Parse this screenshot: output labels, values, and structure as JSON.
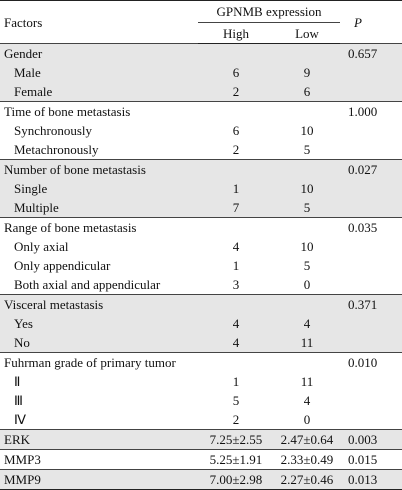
{
  "table": {
    "header": {
      "factors": "Factors",
      "expression": "GPNMB expression",
      "high": "High",
      "low": "Low",
      "p": "P"
    },
    "groups": [
      {
        "label": "Gender",
        "p": "0.657",
        "rows": [
          {
            "label": "Male",
            "high": "6",
            "low": "9"
          },
          {
            "label": "Female",
            "high": "2",
            "low": "6"
          }
        ]
      },
      {
        "label": "Time of bone metastasis",
        "p": "1.000",
        "rows": [
          {
            "label": "Synchronously",
            "high": "6",
            "low": "10"
          },
          {
            "label": "Metachronously",
            "high": "2",
            "low": "5"
          }
        ]
      },
      {
        "label": "Number of bone metastasis",
        "p": "0.027",
        "rows": [
          {
            "label": "Single",
            "high": "1",
            "low": "10"
          },
          {
            "label": "Multiple",
            "high": "7",
            "low": "5"
          }
        ]
      },
      {
        "label": "Range of bone metastasis",
        "p": "0.035",
        "rows": [
          {
            "label": "Only axial",
            "high": "4",
            "low": "10"
          },
          {
            "label": "Only appendicular",
            "high": "1",
            "low": "5"
          },
          {
            "label": "Both axial and appendicular",
            "high": "3",
            "low": "0"
          }
        ]
      },
      {
        "label": "Visceral metastasis",
        "p": "0.371",
        "rows": [
          {
            "label": "Yes",
            "high": "4",
            "low": "4"
          },
          {
            "label": "No",
            "high": "4",
            "low": "11"
          }
        ]
      },
      {
        "label": "Fuhrman grade of primary tumor",
        "p": "0.010",
        "rows": [
          {
            "label": "Ⅱ",
            "high": "1",
            "low": "11"
          },
          {
            "label": "Ⅲ",
            "high": "5",
            "low": "4"
          },
          {
            "label": "Ⅳ",
            "high": "2",
            "low": "0"
          }
        ]
      },
      {
        "label": "ERK",
        "high": "7.25±2.55",
        "low": "2.47±0.64",
        "p": "0.003"
      },
      {
        "label": "MMP3",
        "high": "5.25±1.91",
        "low": "2.33±0.49",
        "p": "0.015"
      },
      {
        "label": "MMP9",
        "high": "7.00±2.98",
        "low": "2.27±0.46",
        "p": "0.013"
      }
    ]
  }
}
